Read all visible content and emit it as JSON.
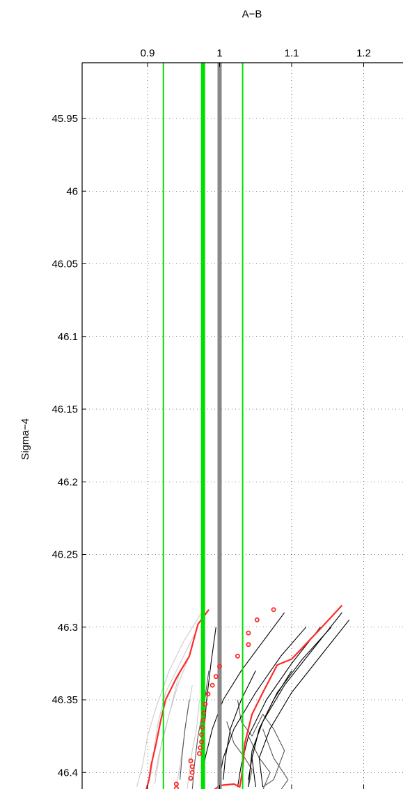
{
  "chart_data": {
    "type": "line",
    "title": "",
    "xlabel": "A−B",
    "ylabel": "Sigma−4",
    "x_axis_position": "top",
    "y_axis_reversed": true,
    "xlim": [
      0.815,
      1.26
    ],
    "ylim": [
      45.9,
      46.415
    ],
    "xticks": [
      0.9,
      1,
      1.1,
      1.2
    ],
    "xtick_labels": [
      "0.9",
      "1",
      "1.1",
      "1.2"
    ],
    "yticks": [
      45.95,
      46,
      46.05,
      46.1,
      46.15,
      46.2,
      46.25,
      46.3,
      46.35,
      46.4
    ],
    "ytick_labels": [
      "45.95",
      "46",
      "46.05",
      "46.1",
      "46.15",
      "46.2",
      "46.25",
      "46.3",
      "46.35",
      "46.4"
    ],
    "grid": true,
    "grid_style": "dotted",
    "colors": {
      "light_gray": "#cccccc",
      "dark_gray": "#555555",
      "black": "#000000",
      "red": "#ff2a2a",
      "green": "#00e000",
      "center_gray": "#888888"
    },
    "reference_lines": [
      {
        "x": 1.0,
        "color": "#888888",
        "weight": "thick"
      },
      {
        "x": 0.977,
        "color": "#00e000",
        "weight": "thick"
      },
      {
        "x": 0.922,
        "color": "#00e000",
        "weight": "thin"
      },
      {
        "x": 1.032,
        "color": "#00e000",
        "weight": "thin"
      }
    ],
    "series": [
      {
        "color": "#cccccc",
        "points": [
          [
            0.975,
            46.29
          ],
          [
            0.95,
            46.31
          ],
          [
            0.93,
            46.33
          ],
          [
            0.912,
            46.355
          ],
          [
            0.9,
            46.375
          ],
          [
            0.893,
            46.395
          ],
          [
            0.885,
            46.41
          ]
        ]
      },
      {
        "color": "#cccccc",
        "points": [
          [
            0.965,
            46.305
          ],
          [
            0.945,
            46.325
          ],
          [
            0.925,
            46.345
          ],
          [
            0.915,
            46.365
          ],
          [
            0.91,
            46.38
          ],
          [
            0.905,
            46.4
          ],
          [
            0.9,
            46.41
          ]
        ]
      },
      {
        "color": "#cccccc",
        "points": [
          [
            0.958,
            46.32
          ],
          [
            0.942,
            46.34
          ],
          [
            0.93,
            46.36
          ],
          [
            0.92,
            46.378
          ],
          [
            0.915,
            46.393
          ],
          [
            0.91,
            46.408
          ]
        ]
      },
      {
        "color": "#cccccc",
        "points": [
          [
            0.945,
            46.33
          ],
          [
            0.935,
            46.35
          ],
          [
            0.925,
            46.37
          ],
          [
            0.916,
            46.387
          ],
          [
            0.91,
            46.403
          ]
        ]
      },
      {
        "color": "#cccccc",
        "points": [
          [
            0.962,
            46.34
          ],
          [
            0.955,
            46.36
          ],
          [
            0.95,
            46.378
          ],
          [
            0.945,
            46.395
          ],
          [
            0.94,
            46.41
          ]
        ]
      },
      {
        "color": "#cccccc",
        "points": [
          [
            0.972,
            46.35
          ],
          [
            0.968,
            46.37
          ],
          [
            0.962,
            46.385
          ],
          [
            0.958,
            46.4
          ],
          [
            0.955,
            46.412
          ]
        ]
      },
      {
        "color": "#555555",
        "points": [
          [
            0.958,
            46.35
          ],
          [
            0.952,
            46.37
          ],
          [
            0.948,
            46.388
          ],
          [
            0.945,
            46.405
          ]
        ]
      },
      {
        "color": "#555555",
        "points": [
          [
            0.985,
            46.33
          ],
          [
            0.978,
            46.355
          ],
          [
            0.97,
            46.375
          ],
          [
            0.965,
            46.395
          ],
          [
            0.962,
            46.412
          ]
        ]
      },
      {
        "color": "#555555",
        "points": [
          [
            1.025,
            46.35
          ],
          [
            1.03,
            46.365
          ],
          [
            1.045,
            46.375
          ],
          [
            1.06,
            46.36
          ],
          [
            1.075,
            46.37
          ],
          [
            1.09,
            46.385
          ],
          [
            1.075,
            46.405
          ],
          [
            1.06,
            46.41
          ]
        ]
      },
      {
        "color": "#555555",
        "points": [
          [
            1.01,
            46.365
          ],
          [
            1.02,
            46.38
          ],
          [
            1.035,
            46.39
          ],
          [
            1.045,
            46.398
          ],
          [
            1.04,
            46.41
          ]
        ]
      },
      {
        "color": "#555555",
        "points": [
          [
            1.04,
            46.375
          ],
          [
            1.055,
            46.39
          ],
          [
            1.07,
            46.4
          ],
          [
            1.06,
            46.412
          ]
        ]
      },
      {
        "color": "#555555",
        "points": [
          [
            1.06,
            46.37
          ],
          [
            1.075,
            46.39
          ],
          [
            1.095,
            46.405
          ],
          [
            1.085,
            46.412
          ]
        ]
      },
      {
        "color": "#000000",
        "points": [
          [
            1.09,
            46.29
          ],
          [
            1.06,
            46.31
          ],
          [
            1.03,
            46.33
          ],
          [
            1.005,
            46.35
          ],
          [
            0.99,
            46.37
          ],
          [
            0.98,
            46.39
          ],
          [
            0.975,
            46.41
          ]
        ]
      },
      {
        "color": "#000000",
        "points": [
          [
            1.12,
            46.3
          ],
          [
            1.085,
            46.32
          ],
          [
            1.05,
            46.345
          ],
          [
            1.02,
            46.37
          ],
          [
            1.005,
            46.39
          ],
          [
            0.998,
            46.41
          ]
        ]
      },
      {
        "color": "#000000",
        "points": [
          [
            1.14,
            46.3
          ],
          [
            1.1,
            46.325
          ],
          [
            1.065,
            46.35
          ],
          [
            1.04,
            46.375
          ],
          [
            1.03,
            46.395
          ],
          [
            1.025,
            46.41
          ]
        ]
      },
      {
        "color": "#000000",
        "points": [
          [
            1.17,
            46.29
          ],
          [
            1.13,
            46.315
          ],
          [
            1.09,
            46.34
          ],
          [
            1.06,
            46.365
          ],
          [
            1.045,
            46.385
          ],
          [
            1.04,
            46.41
          ]
        ]
      },
      {
        "color": "#000000",
        "points": [
          [
            1.155,
            46.3
          ],
          [
            1.115,
            46.322
          ],
          [
            1.08,
            46.345
          ],
          [
            1.055,
            46.37
          ],
          [
            1.045,
            46.39
          ],
          [
            1.05,
            46.41
          ]
        ]
      },
      {
        "color": "#000000",
        "points": [
          [
            1.18,
            46.295
          ],
          [
            1.14,
            46.32
          ],
          [
            1.1,
            46.345
          ],
          [
            1.07,
            46.37
          ],
          [
            1.055,
            46.39
          ],
          [
            1.06,
            46.41
          ]
        ]
      },
      {
        "color": "#000000",
        "points": [
          [
            1.1,
            46.33
          ],
          [
            1.075,
            46.35
          ],
          [
            1.055,
            46.37
          ],
          [
            1.045,
            46.39
          ],
          [
            1.04,
            46.405
          ]
        ]
      },
      {
        "color": "#000000",
        "points": [
          [
            1.05,
            46.33
          ],
          [
            1.03,
            46.35
          ],
          [
            1.015,
            46.37
          ],
          [
            1.008,
            46.39
          ],
          [
            1.005,
            46.405
          ]
        ]
      },
      {
        "color": "#000000",
        "points": [
          [
            0.995,
            46.3
          ],
          [
            0.988,
            46.325
          ],
          [
            0.982,
            46.35
          ],
          [
            0.978,
            46.375
          ],
          [
            0.976,
            46.4
          ]
        ]
      },
      {
        "color": "#ff2a2a",
        "width": 2.2,
        "points": [
          [
            0.985,
            46.288
          ],
          [
            0.97,
            46.298
          ],
          [
            0.958,
            46.32
          ],
          [
            0.94,
            46.335
          ],
          [
            0.925,
            46.35
          ],
          [
            0.918,
            46.365
          ],
          [
            0.912,
            46.38
          ],
          [
            0.905,
            46.395
          ],
          [
            0.902,
            46.405
          ],
          [
            0.898,
            46.412
          ],
          [
            0.87,
            46.413
          ]
        ]
      },
      {
        "color": "#ff2a2a",
        "width": 2.2,
        "points": [
          [
            1.17,
            46.285
          ],
          [
            1.142,
            46.3
          ],
          [
            1.1,
            46.322
          ],
          [
            1.08,
            46.326
          ],
          [
            1.06,
            46.345
          ],
          [
            1.045,
            46.36
          ],
          [
            1.035,
            46.38
          ],
          [
            1.032,
            46.398
          ],
          [
            1.028,
            46.41
          ],
          [
            1.02,
            46.408
          ],
          [
            1.0,
            46.409
          ],
          [
            0.99,
            46.413
          ]
        ]
      }
    ],
    "markers": {
      "color": "#ff2a2a",
      "shape": "open-circle",
      "points": [
        [
          1.075,
          46.288
        ],
        [
          1.052,
          46.295
        ],
        [
          1.04,
          46.304
        ],
        [
          1.04,
          46.312
        ],
        [
          1.025,
          46.32
        ],
        [
          1.0,
          46.327
        ],
        [
          0.995,
          46.334
        ],
        [
          0.99,
          46.34
        ],
        [
          0.984,
          46.346
        ],
        [
          0.98,
          46.353
        ],
        [
          0.978,
          46.359
        ],
        [
          0.977,
          46.364
        ],
        [
          0.976,
          46.369
        ],
        [
          0.975,
          46.374
        ],
        [
          0.975,
          46.379
        ],
        [
          0.973,
          46.383
        ],
        [
          0.972,
          46.387
        ],
        [
          0.96,
          46.392
        ],
        [
          0.962,
          46.396
        ],
        [
          0.962,
          46.4
        ],
        [
          0.96,
          46.404
        ],
        [
          0.94,
          46.408
        ],
        [
          0.94,
          46.411
        ],
        [
          0.973,
          46.414
        ]
      ]
    }
  }
}
